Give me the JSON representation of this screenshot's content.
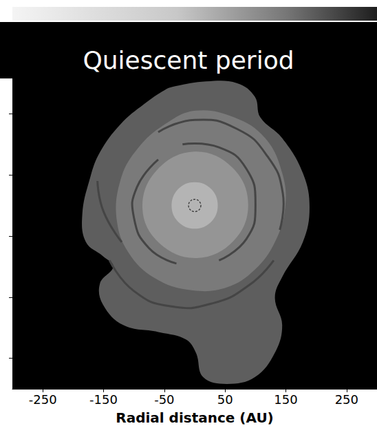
{
  "chart_data": {
    "type": "image",
    "title": "Quiescent period",
    "xlabel": "Radial distance (AU)",
    "xlim": [
      -300,
      300
    ],
    "ylim": [
      -300,
      210
    ],
    "xticks": [
      -250,
      -150,
      -50,
      50,
      150,
      250
    ],
    "yticks": [
      150,
      50,
      -50,
      -150,
      -250
    ],
    "tick_labels": "x",
    "regions": [
      {
        "color": "#5e5e5e",
        "points": [
          [
            -32,
            195
          ],
          [
            19,
            203
          ],
          [
            70,
            200
          ],
          [
            99,
            178
          ],
          [
            108,
            144
          ],
          [
            144,
            110
          ],
          [
            178,
            53
          ],
          [
            189,
            -3
          ],
          [
            178,
            -60
          ],
          [
            144,
            -117
          ],
          [
            132,
            -151
          ],
          [
            144,
            -196
          ],
          [
            132,
            -241
          ],
          [
            99,
            -281
          ],
          [
            53,
            -292
          ],
          [
            14,
            -281
          ],
          [
            2,
            -241
          ],
          [
            -15,
            -219
          ],
          [
            -60,
            -207
          ],
          [
            -117,
            -196
          ],
          [
            -151,
            -162
          ],
          [
            -156,
            -128
          ],
          [
            -134,
            -100
          ],
          [
            -151,
            -83
          ],
          [
            -179,
            -60
          ],
          [
            -185,
            -15
          ],
          [
            -173,
            42
          ],
          [
            -156,
            87
          ],
          [
            -122,
            133
          ],
          [
            -83,
            166
          ],
          [
            -49,
            189
          ]
        ]
      },
      {
        "color": "#7a7a7a",
        "points": [
          [
            2,
            155
          ],
          [
            65,
            144
          ],
          [
            116,
            110
          ],
          [
            144,
            53
          ],
          [
            149,
            -3
          ],
          [
            132,
            -60
          ],
          [
            99,
            -105
          ],
          [
            53,
            -134
          ],
          [
            -3,
            -139
          ],
          [
            -60,
            -122
          ],
          [
            -105,
            -83
          ],
          [
            -128,
            -26
          ],
          [
            -122,
            42
          ],
          [
            -94,
            93
          ],
          [
            -49,
            133
          ]
        ]
      },
      {
        "color": "#959595",
        "points": [
          [
            0,
            88
          ],
          [
            62,
            62
          ],
          [
            88,
            2
          ],
          [
            64,
            -58
          ],
          [
            4,
            -86
          ],
          [
            -58,
            -62
          ],
          [
            -86,
            -4
          ],
          [
            -62,
            58
          ]
        ]
      },
      {
        "color": "#b4b4b4",
        "points": [
          [
            0,
            38
          ],
          [
            27,
            27
          ],
          [
            38,
            0
          ],
          [
            27,
            -27
          ],
          [
            0,
            -38
          ],
          [
            -27,
            -27
          ],
          [
            -38,
            0
          ],
          [
            -27,
            27
          ]
        ]
      }
    ],
    "arms": {
      "color": "#454545",
      "lines": [
        [
          [
            -60,
            120
          ],
          [
            0,
            140
          ],
          [
            70,
            125
          ],
          [
            120,
            80
          ],
          [
            145,
            20
          ],
          [
            140,
            -40
          ]
        ],
        [
          [
            130,
            -90
          ],
          [
            90,
            -130
          ],
          [
            30,
            -160
          ],
          [
            -40,
            -165
          ],
          [
            -100,
            -140
          ],
          [
            -140,
            -90
          ]
        ],
        [
          [
            -160,
            40
          ],
          [
            -150,
            -10
          ],
          [
            -120,
            -60
          ]
        ],
        [
          [
            -20,
            100
          ],
          [
            40,
            95
          ],
          [
            85,
            60
          ],
          [
            100,
            0
          ],
          [
            85,
            -55
          ],
          [
            40,
            -90
          ]
        ],
        [
          [
            -30,
            -95
          ],
          [
            -75,
            -70
          ],
          [
            -100,
            -20
          ],
          [
            -95,
            30
          ],
          [
            -60,
            75
          ]
        ]
      ]
    },
    "star": {
      "x": 0,
      "y": 0,
      "marker": "circle",
      "line_style": "dashed",
      "color": "#333333"
    }
  }
}
